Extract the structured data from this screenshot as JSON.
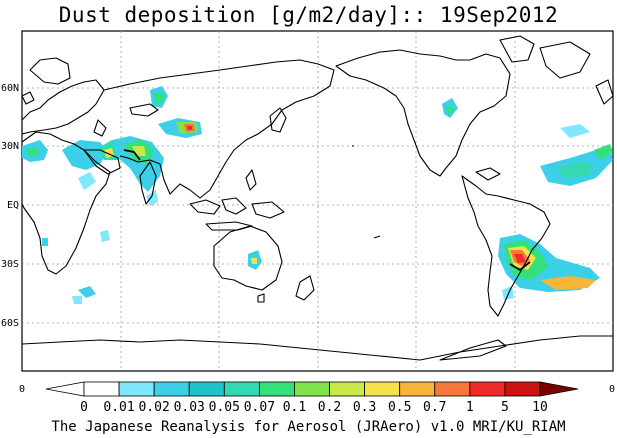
{
  "title": "Dust deposition [g/m2/day]:: 19Sep2012",
  "map": {
    "lat_labels": [
      {
        "label": "60N",
        "lat": 60
      },
      {
        "label": "30N",
        "lat": 30
      },
      {
        "label": "EQ",
        "lat": 0
      },
      {
        "label": "30S",
        "lat": -30
      },
      {
        "label": "60S",
        "lat": -60
      }
    ],
    "lon_edge_labels": {
      "left": "0",
      "right": "0"
    },
    "lat_range": [
      -90,
      90
    ],
    "lon_center": 180,
    "grid": "dotted"
  },
  "colorbar": {
    "labels": [
      "0",
      "0.01",
      "0.02",
      "0.03",
      "0.05",
      "0.07",
      "0.1",
      "0.2",
      "0.3",
      "0.5",
      "0.7",
      "1",
      "5",
      "10"
    ],
    "colors": [
      "#ffffff",
      "#ffffff",
      "#7fe8ff",
      "#3ccfe8",
      "#1dc4cc",
      "#33d9b0",
      "#33e07a",
      "#7fe24a",
      "#c9e84a",
      "#f5e14a",
      "#f7b53a",
      "#f5783a",
      "#ee2a2a",
      "#cc1111",
      "#a00000",
      "#7a0000"
    ]
  },
  "credit": "The Japanese Reanalysis for Aerosol (JRAero) v1.0 MRI/KU_RIAM"
}
